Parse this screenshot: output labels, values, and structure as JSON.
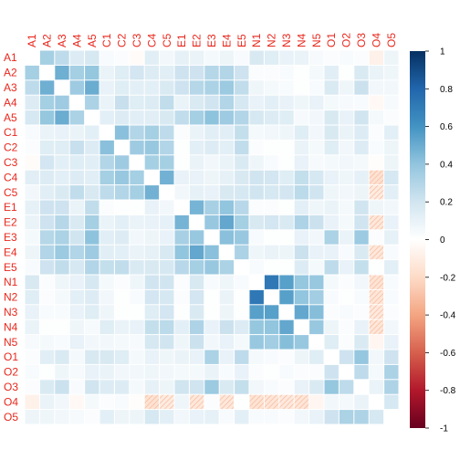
{
  "chart_data": {
    "type": "heatmap",
    "title": "",
    "variables": [
      "A1",
      "A2",
      "A3",
      "A4",
      "A5",
      "C1",
      "C2",
      "C3",
      "C4",
      "C5",
      "E1",
      "E2",
      "E3",
      "E4",
      "E5",
      "N1",
      "N2",
      "N3",
      "N4",
      "N5",
      "O1",
      "O2",
      "O3",
      "O4",
      "O5"
    ],
    "matrix": [
      [
        0,
        0.34,
        0.26,
        0.15,
        0.18,
        0.03,
        0.02,
        -0.02,
        0.13,
        0.06,
        0.11,
        0.09,
        0.05,
        0.08,
        0.03,
        0.17,
        0.14,
        0.1,
        0.09,
        0.04,
        0.02,
        0.03,
        0.02,
        -0.08,
        0.08
      ],
      [
        0.34,
        0,
        0.49,
        0.34,
        0.39,
        0.09,
        0.14,
        0.19,
        0.15,
        0.13,
        0.21,
        0.21,
        0.29,
        0.3,
        0.21,
        0.02,
        0.02,
        0.03,
        0.01,
        0.05,
        0.13,
        0.01,
        0.16,
        0.09,
        0.07
      ],
      [
        0.26,
        0.49,
        0,
        0.36,
        0.5,
        0.1,
        0.14,
        0.12,
        0.12,
        0.16,
        0.21,
        0.29,
        0.32,
        0.37,
        0.25,
        0.07,
        0.05,
        0.03,
        0.01,
        0.03,
        0.16,
        0.07,
        0.22,
        0.06,
        0.06
      ],
      [
        0.15,
        0.34,
        0.36,
        0,
        0.32,
        0.09,
        0.23,
        0.14,
        0.15,
        0.25,
        0.09,
        0.16,
        0.2,
        0.3,
        0.18,
        0.1,
        0.12,
        0.1,
        0.07,
        0.1,
        0.05,
        0.04,
        0.03,
        -0.04,
        0.04
      ],
      [
        0.18,
        0.39,
        0.5,
        0.32,
        0,
        0.12,
        0.15,
        0.13,
        0.13,
        0.17,
        0.25,
        0.34,
        0.41,
        0.36,
        0.3,
        0.18,
        0.15,
        0.14,
        0.04,
        0.06,
        0.17,
        0.1,
        0.2,
        0.05,
        0.02
      ],
      [
        0.03,
        0.09,
        0.1,
        0.09,
        0.12,
        0,
        0.42,
        0.3,
        0.34,
        0.26,
        0.02,
        0.09,
        0.13,
        0.13,
        0.24,
        0.05,
        0.06,
        0.07,
        0.14,
        0.06,
        0.17,
        0.09,
        0.15,
        0.02,
        0.12
      ],
      [
        0.02,
        0.14,
        0.14,
        0.23,
        0.15,
        0.42,
        0,
        0.36,
        0.38,
        0.3,
        0.01,
        0.12,
        0.15,
        0.12,
        0.25,
        0.02,
        0.01,
        0.01,
        0.09,
        0.05,
        0.14,
        0.06,
        0.15,
        0.03,
        0.08
      ],
      [
        -0.02,
        0.19,
        0.12,
        0.14,
        0.13,
        0.3,
        0.36,
        0,
        0.34,
        0.34,
        0.01,
        0.09,
        0.06,
        0.09,
        0.16,
        0.07,
        0.03,
        0.01,
        0.1,
        0.04,
        0.05,
        0.06,
        0.05,
        -0.01,
        0.08
      ],
      [
        0.13,
        0.15,
        0.12,
        0.15,
        0.13,
        0.34,
        0.38,
        0.34,
        0,
        0.48,
        0.1,
        0.1,
        0.08,
        0.11,
        0.17,
        0.2,
        0.19,
        0.14,
        0.24,
        0.18,
        0.1,
        0.07,
        0.11,
        -0.16,
        0.18
      ],
      [
        0.06,
        0.13,
        0.16,
        0.25,
        0.17,
        0.26,
        0.3,
        0.34,
        0.48,
        0,
        0.06,
        0.11,
        0.1,
        0.17,
        0.18,
        0.2,
        0.18,
        0.19,
        0.27,
        0.2,
        0.07,
        0.06,
        0.08,
        -0.11,
        0.12
      ],
      [
        0.11,
        0.21,
        0.21,
        0.09,
        0.25,
        0.02,
        0.01,
        0.01,
        0.1,
        0.06,
        0,
        0.47,
        0.33,
        0.4,
        0.28,
        0.02,
        0.02,
        0.01,
        0.12,
        0.07,
        0.09,
        0.05,
        0.2,
        0.07,
        0.06
      ],
      [
        0.09,
        0.21,
        0.29,
        0.16,
        0.34,
        0.09,
        0.12,
        0.09,
        0.1,
        0.11,
        0.47,
        0,
        0.38,
        0.52,
        0.34,
        0.17,
        0.19,
        0.16,
        0.31,
        0.22,
        0.1,
        0.05,
        0.2,
        -0.13,
        0.1
      ],
      [
        0.05,
        0.29,
        0.32,
        0.2,
        0.41,
        0.13,
        0.15,
        0.06,
        0.08,
        0.1,
        0.33,
        0.38,
        0,
        0.42,
        0.38,
        0.03,
        0.01,
        0.01,
        0.1,
        0.06,
        0.32,
        0.09,
        0.37,
        0.02,
        0.11
      ],
      [
        0.08,
        0.3,
        0.37,
        0.3,
        0.36,
        0.13,
        0.12,
        0.09,
        0.11,
        0.17,
        0.4,
        0.52,
        0.42,
        0,
        0.32,
        0.07,
        0.09,
        0.08,
        0.22,
        0.1,
        0.1,
        0.03,
        0.16,
        -0.13,
        0.03
      ],
      [
        0.03,
        0.21,
        0.25,
        0.18,
        0.3,
        0.24,
        0.25,
        0.16,
        0.17,
        0.18,
        0.28,
        0.34,
        0.38,
        0.32,
        0,
        0.03,
        0.01,
        0.01,
        0.15,
        0.05,
        0.26,
        0.1,
        0.24,
        0.01,
        0.12
      ],
      [
        0.17,
        0.02,
        0.07,
        0.1,
        0.18,
        0.05,
        0.02,
        0.07,
        0.2,
        0.2,
        0.02,
        0.17,
        0.03,
        0.07,
        0.03,
        0,
        0.72,
        0.55,
        0.39,
        0.38,
        0.05,
        0.02,
        0.06,
        -0.15,
        0.03
      ],
      [
        0.14,
        0.02,
        0.05,
        0.12,
        0.15,
        0.06,
        0.01,
        0.03,
        0.19,
        0.18,
        0.02,
        0.19,
        0.01,
        0.09,
        0.01,
        0.72,
        0,
        0.55,
        0.4,
        0.35,
        0.03,
        0.01,
        0.03,
        -0.14,
        0.03
      ],
      [
        0.1,
        0.03,
        0.03,
        0.1,
        0.14,
        0.07,
        0.01,
        0.01,
        0.14,
        0.19,
        0.01,
        0.16,
        0.01,
        0.08,
        0.01,
        0.55,
        0.55,
        0,
        0.52,
        0.43,
        0.02,
        0.03,
        0.02,
        -0.12,
        0.02
      ],
      [
        0.09,
        0.01,
        0.01,
        0.07,
        0.04,
        0.14,
        0.09,
        0.1,
        0.24,
        0.27,
        0.12,
        0.31,
        0.1,
        0.22,
        0.15,
        0.39,
        0.4,
        0.52,
        0,
        0.38,
        0.08,
        0.02,
        0.1,
        -0.14,
        0.06
      ],
      [
        0.04,
        0.05,
        0.03,
        0.1,
        0.06,
        0.06,
        0.05,
        0.04,
        0.18,
        0.2,
        0.07,
        0.22,
        0.06,
        0.1,
        0.05,
        0.38,
        0.35,
        0.43,
        0.38,
        0,
        0.14,
        0.02,
        0.16,
        -0.05,
        0.1
      ],
      [
        0.02,
        0.13,
        0.16,
        0.05,
        0.17,
        0.17,
        0.14,
        0.05,
        0.1,
        0.07,
        0.09,
        0.1,
        0.32,
        0.1,
        0.26,
        0.05,
        0.03,
        0.02,
        0.08,
        0.14,
        0,
        0.21,
        0.39,
        0.06,
        0.21
      ],
      [
        0.03,
        0.01,
        0.07,
        0.04,
        0.1,
        0.09,
        0.06,
        0.06,
        0.07,
        0.06,
        0.05,
        0.05,
        0.09,
        0.03,
        0.1,
        0.02,
        0.01,
        0.03,
        0.02,
        0.02,
        0.21,
        0,
        0.26,
        0.05,
        0.32
      ],
      [
        0.02,
        0.16,
        0.22,
        0.03,
        0.2,
        0.15,
        0.15,
        0.05,
        0.11,
        0.08,
        0.2,
        0.2,
        0.37,
        0.16,
        0.24,
        0.06,
        0.03,
        0.02,
        0.1,
        0.16,
        0.39,
        0.26,
        0,
        0.09,
        0.31
      ],
      [
        -0.08,
        0.09,
        0.06,
        -0.04,
        0.05,
        0.02,
        0.03,
        -0.01,
        -0.16,
        -0.11,
        0.07,
        -0.13,
        0.02,
        -0.13,
        0.01,
        -0.15,
        -0.14,
        -0.12,
        -0.14,
        -0.05,
        0.06,
        0.05,
        0.09,
        0,
        0.18
      ],
      [
        0.08,
        0.07,
        0.06,
        0.04,
        0.02,
        0.12,
        0.08,
        0.08,
        0.18,
        0.12,
        0.06,
        0.1,
        0.11,
        0.03,
        0.12,
        0.03,
        0.03,
        0.02,
        0.06,
        0.1,
        0.21,
        0.32,
        0.31,
        0.18,
        0
      ]
    ],
    "colorbar": {
      "range": [
        -1,
        1
      ],
      "ticks": [
        1,
        0.8,
        0.6,
        0.4,
        0.2,
        0,
        -0.2,
        -0.4,
        -0.6,
        -0.8,
        -1
      ],
      "tick_labels": [
        "1",
        "0.8",
        "0.6",
        "0.4",
        "0.2",
        "0",
        "-0.2",
        "-0.4",
        "-0.6",
        "-0.8",
        "-1"
      ],
      "colors": [
        "#67001F",
        "#B2182B",
        "#D6604D",
        "#F4A582",
        "#FDDBC7",
        "#FFFFFF",
        "#D1E5F0",
        "#92C5DE",
        "#4393C3",
        "#2166AC",
        "#053061"
      ]
    },
    "negative_hatch_color": "#f4b89c",
    "grid_color": "#ffffff",
    "label_color": "#e8271c"
  }
}
